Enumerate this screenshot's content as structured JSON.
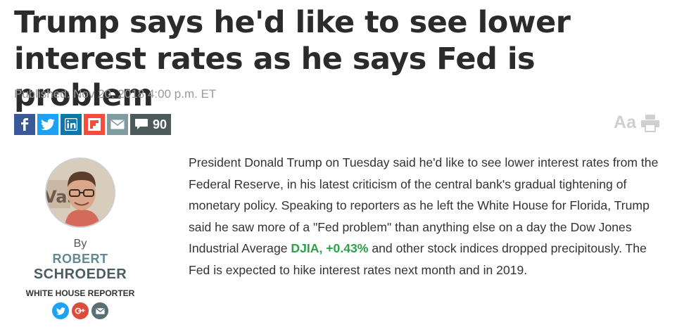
{
  "article": {
    "headline": "Trump says he'd like to see lower interest rates as he says Fed is problem",
    "published": "Published: Nov 20, 2018 4:00 p.m. ET",
    "comment_count": "90",
    "font_size_label": "Aa",
    "body_before": "President Donald Trump on Tuesday said he'd like to see lower interest rates from the Federal Reserve, in his latest criticism of the central bank's gradual tightening of monetary policy. Speaking to reporters as he left the White House for Florida, Trump said he saw more of a \"Fed problem\" than anything else on a day the Dow Jones Industrial Average ",
    "ticker": "DJIA, +0.43%",
    "body_after": " and other stock indices dropped precipitously. The Fed is expected to hike interest rates next month and in 2019."
  },
  "share_icons": [
    "facebook-icon",
    "twitter-icon",
    "linkedin-icon",
    "flipboard-icon",
    "email-icon",
    "comment-icon"
  ],
  "author": {
    "by": "By",
    "first_name": "ROBERT",
    "last_name": "SCHROEDER",
    "role": "WHITE HOUSE REPORTER",
    "photo_text": "Vas"
  },
  "colors": {
    "headline": "#2b2b2b",
    "ticker_positive": "#2fa14c",
    "author_name": "#5f8a94"
  }
}
